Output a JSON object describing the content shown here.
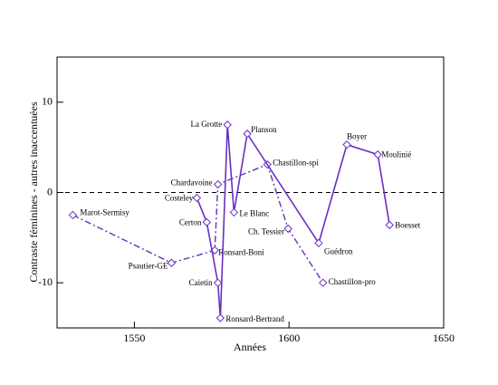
{
  "chart_data": {
    "type": "line",
    "xlabel": "Années",
    "ylabel": "Contraste féminines - autres inaccentuées",
    "xlim": [
      1525,
      1650
    ],
    "xticks": [
      1550,
      1600,
      1650
    ],
    "ylim": [
      -15,
      15
    ],
    "yticks": [
      -10,
      0,
      10
    ],
    "reference_line": 0,
    "series": [
      {
        "color": "#6a2fc0",
        "style": "dashdot",
        "x": [
          1530.1,
          1562,
          1576,
          1577,
          1593,
          1599.7,
          1611
        ],
        "values": [
          -2.5,
          -7.8,
          -6.4,
          0.9,
          3.1,
          -4,
          -10
        ],
        "labels": [
          "Marot-Sermisy",
          "Psautier-GE",
          "Ronsard-Boni",
          "Chardavoine",
          "Chastillon-spi",
          "Ch. Tessier",
          "Chastillon-pro"
        ]
      },
      {
        "color": "#6a2fc0",
        "style": "solid",
        "x": [
          1570.2,
          1573.4,
          1577,
          1577.8,
          1580.1,
          1582.2,
          1586.5,
          1609.6,
          1618.7,
          1628.7,
          1632.5
        ],
        "values": [
          -0.6,
          -3.3,
          -10,
          -13.9,
          7.5,
          -2.2,
          6.5,
          -5.6,
          5.3,
          4.2,
          -3.6
        ],
        "labels": [
          "Costeley",
          "Certon",
          "Caietin",
          "Ronsard-Bertrand",
          "La Grotte",
          "Le Blanc",
          "Planson",
          "Guédron",
          "Boyer",
          "Moulinié",
          "Boesset"
        ]
      }
    ]
  }
}
